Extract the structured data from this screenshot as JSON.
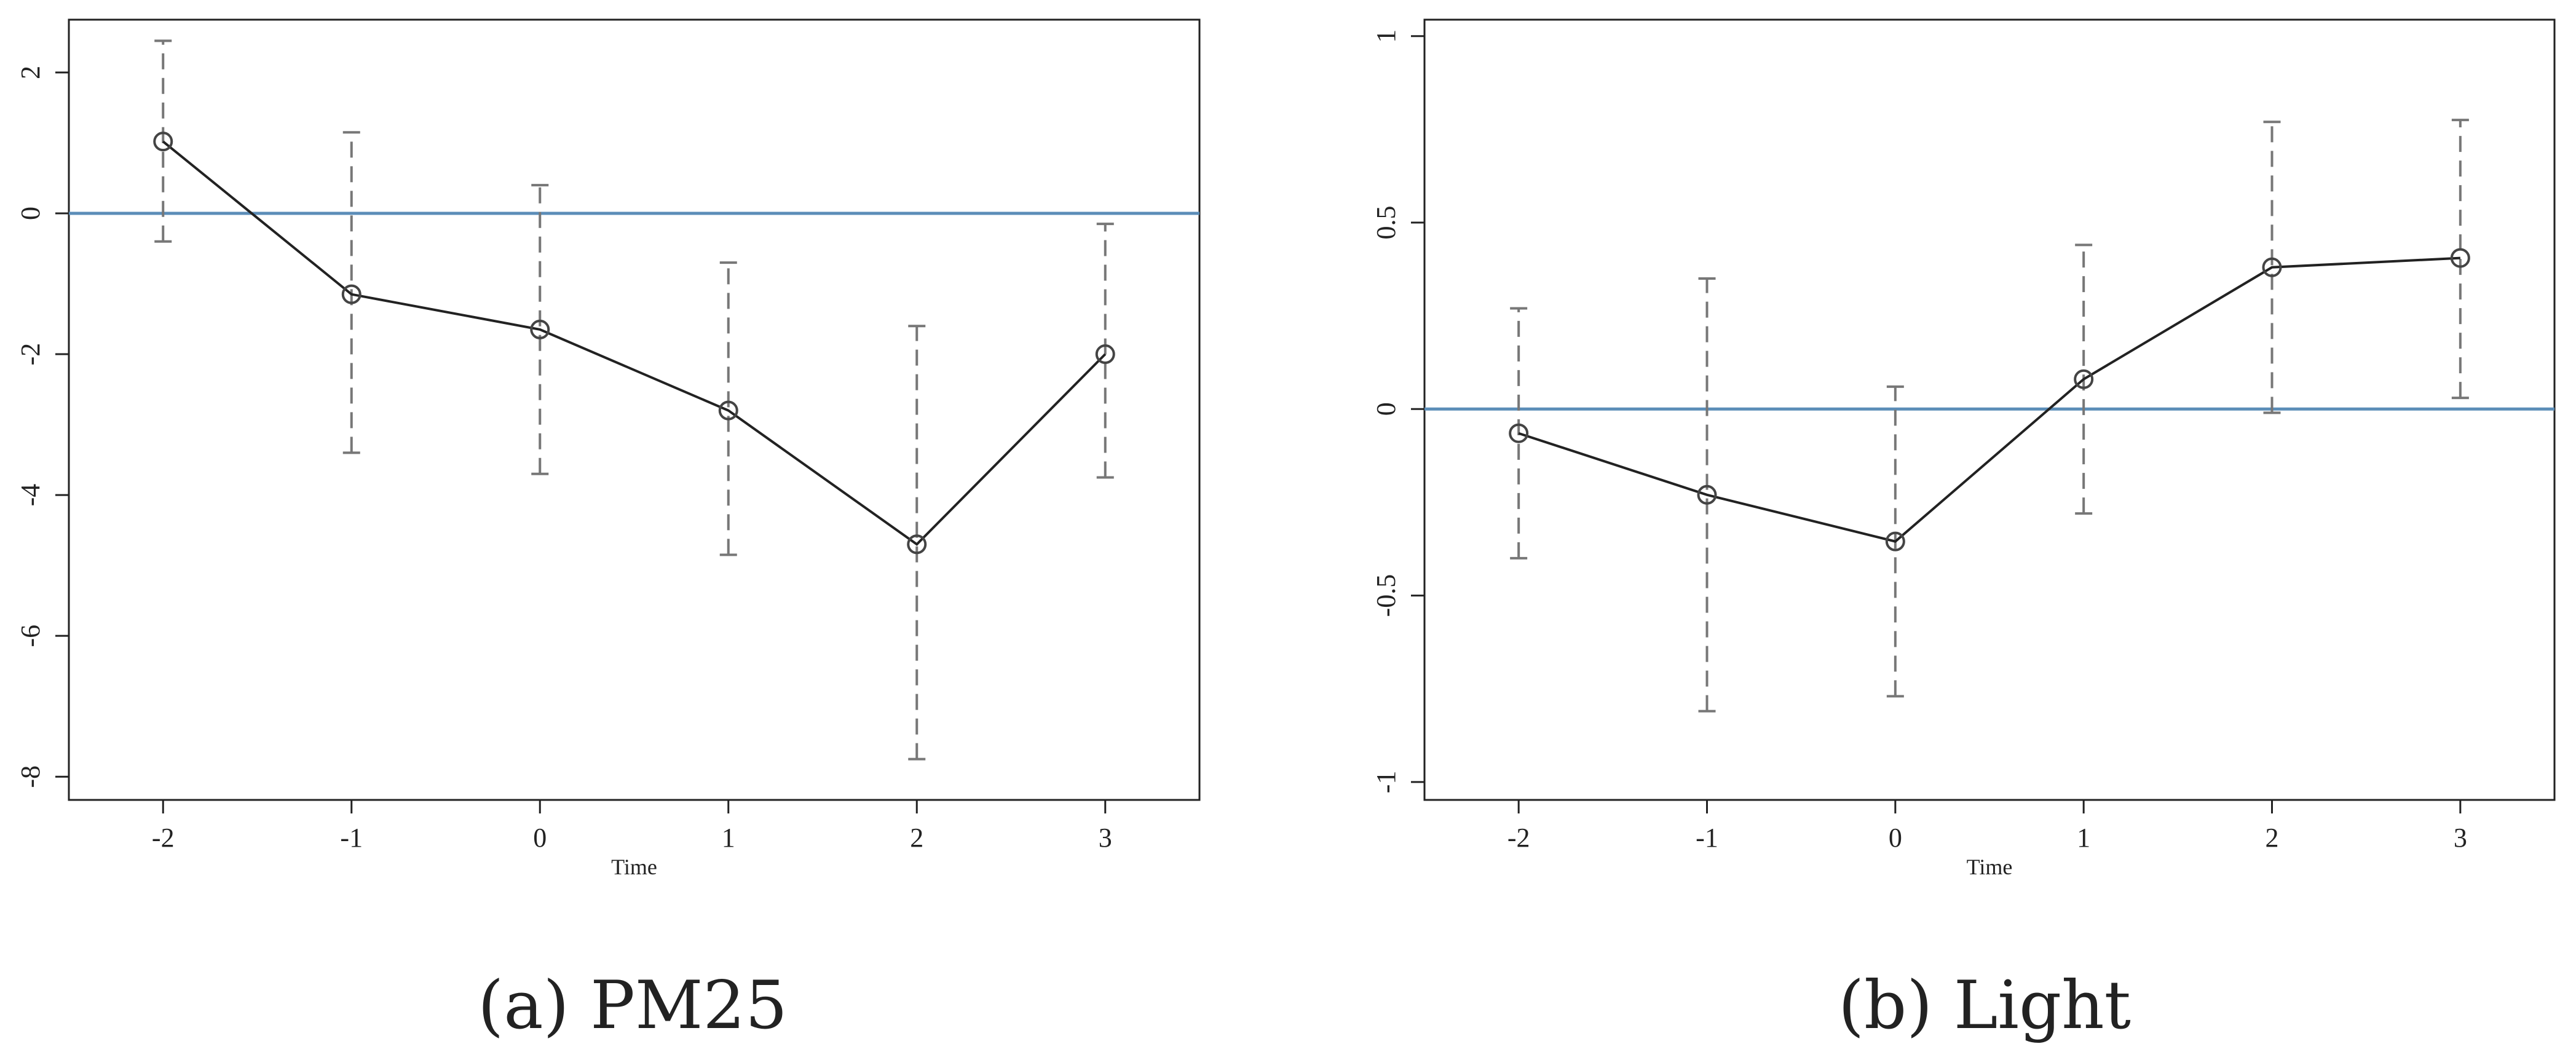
{
  "chart_data": [
    {
      "type": "line",
      "caption": "(a) PM25",
      "xlabel": "Time",
      "x": [
        -2,
        -1,
        0,
        1,
        2,
        3
      ],
      "values": [
        1.02,
        -1.15,
        -1.65,
        -2.8,
        -4.7,
        -2.0
      ],
      "lower": [
        -0.4,
        -3.4,
        -3.7,
        -4.85,
        -7.75,
        -3.75
      ],
      "upper": [
        2.45,
        1.15,
        0.4,
        -0.7,
        -1.6,
        -0.15
      ],
      "xlim": [
        -2.5,
        3.5
      ],
      "xticks": [
        -2,
        -1,
        0,
        1,
        2,
        3
      ],
      "ylim": [
        -8.33,
        2.75
      ],
      "yticks": [
        -8,
        -6,
        -4,
        -2,
        0,
        2
      ],
      "reference_line": 0,
      "reference_color": "#5b8db8",
      "color": "#222222",
      "error_color": "#777777"
    },
    {
      "type": "line",
      "caption": "(b) Light",
      "xlabel": "Time",
      "x": [
        -2,
        -1,
        0,
        1,
        2,
        3
      ],
      "values": [
        -0.065,
        -0.23,
        -0.355,
        0.08,
        0.38,
        0.405
      ],
      "lower": [
        -0.4,
        -0.81,
        -0.77,
        -0.28,
        -0.01,
        0.03
      ],
      "upper": [
        0.27,
        0.35,
        0.06,
        0.44,
        0.77,
        0.775
      ],
      "xlim": [
        -2.5,
        3.5
      ],
      "xticks": [
        -2,
        -1,
        0,
        1,
        2,
        3
      ],
      "ylim": [
        -1.048,
        1.044
      ],
      "yticks": [
        -1,
        -0.5,
        0,
        0.5,
        1
      ],
      "reference_line": 0,
      "reference_color": "#5b8db8",
      "color": "#222222",
      "error_color": "#777777"
    }
  ]
}
